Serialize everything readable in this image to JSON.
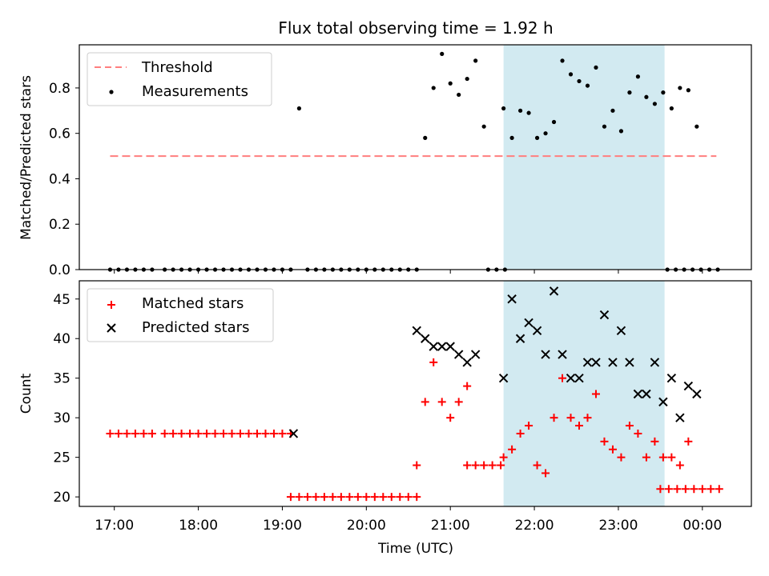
{
  "title": "Flux total observing time = 1.92 h",
  "chart_data": [
    {
      "type": "scatter",
      "title": "Flux total observing time = 1.92 h",
      "xlabel": "",
      "ylabel": "Matched/Predicted stars",
      "x_range": [
        "16:35",
        "00:35"
      ],
      "ylim": [
        0,
        0.99
      ],
      "yticks": [
        "0.0",
        "0.2",
        "0.4",
        "0.6",
        "0.8"
      ],
      "grid": false,
      "legend": "upper left",
      "observing_window": [
        "21:38",
        "23:33"
      ],
      "observing_window_color": "#add8e6",
      "threshold": {
        "name": "Threshold",
        "value": 0.5,
        "x_start": "16:57",
        "x_end": "00:10",
        "color": "#ff7f7f",
        "style": "dashed"
      },
      "series": [
        {
          "name": "Measurements",
          "color": "#000000",
          "marker": "dot",
          "points": [
            [
              "16:57",
              0
            ],
            [
              "17:03",
              0
            ],
            [
              "17:09",
              0
            ],
            [
              "17:15",
              0
            ],
            [
              "17:21",
              0
            ],
            [
              "17:27",
              0
            ],
            [
              "17:36",
              0
            ],
            [
              "17:42",
              0
            ],
            [
              "17:48",
              0
            ],
            [
              "17:54",
              0
            ],
            [
              "18:00",
              0
            ],
            [
              "18:06",
              0
            ],
            [
              "18:12",
              0
            ],
            [
              "18:18",
              0
            ],
            [
              "18:24",
              0
            ],
            [
              "18:30",
              0
            ],
            [
              "18:36",
              0
            ],
            [
              "18:42",
              0
            ],
            [
              "18:48",
              0
            ],
            [
              "18:54",
              0
            ],
            [
              "19:00",
              0
            ],
            [
              "19:06",
              0
            ],
            [
              "19:12",
              0.71
            ],
            [
              "19:18",
              0
            ],
            [
              "19:24",
              0
            ],
            [
              "19:30",
              0
            ],
            [
              "19:36",
              0
            ],
            [
              "19:42",
              0
            ],
            [
              "19:48",
              0
            ],
            [
              "19:54",
              0
            ],
            [
              "20:00",
              0
            ],
            [
              "20:06",
              0
            ],
            [
              "20:12",
              0
            ],
            [
              "20:18",
              0
            ],
            [
              "20:24",
              0
            ],
            [
              "20:30",
              0
            ],
            [
              "20:36",
              0
            ],
            [
              "20:42",
              0.58
            ],
            [
              "20:48",
              0.8
            ],
            [
              "20:54",
              0.95
            ],
            [
              "21:00",
              0.82
            ],
            [
              "21:06",
              0.77
            ],
            [
              "21:12",
              0.84
            ],
            [
              "21:18",
              0.92
            ],
            [
              "21:24",
              0.63
            ],
            [
              "21:27",
              0
            ],
            [
              "21:33",
              0
            ],
            [
              "21:39",
              0
            ],
            [
              "21:38",
              0.71
            ],
            [
              "21:44",
              0.58
            ],
            [
              "21:50",
              0.7
            ],
            [
              "21:56",
              0.69
            ],
            [
              "22:02",
              0.58
            ],
            [
              "22:08",
              0.6
            ],
            [
              "22:14",
              0.65
            ],
            [
              "22:20",
              0.92
            ],
            [
              "22:26",
              0.86
            ],
            [
              "22:32",
              0.83
            ],
            [
              "22:38",
              0.81
            ],
            [
              "22:44",
              0.89
            ],
            [
              "22:50",
              0.63
            ],
            [
              "22:56",
              0.7
            ],
            [
              "23:02",
              0.61
            ],
            [
              "23:08",
              0.78
            ],
            [
              "23:14",
              0.85
            ],
            [
              "23:20",
              0.76
            ],
            [
              "23:26",
              0.73
            ],
            [
              "23:32",
              0.78
            ],
            [
              "23:38",
              0.71
            ],
            [
              "23:44",
              0.8
            ],
            [
              "23:50",
              0.79
            ],
            [
              "23:56",
              0.63
            ],
            [
              "23:35",
              0
            ],
            [
              "23:41",
              0
            ],
            [
              "23:47",
              0
            ],
            [
              "23:53",
              0
            ],
            [
              "23:59",
              0
            ],
            [
              "00:05",
              0
            ],
            [
              "00:11",
              0
            ]
          ]
        }
      ]
    },
    {
      "type": "scatter",
      "title": "",
      "xlabel": "Time (UTC)",
      "ylabel": "Count",
      "x_range": [
        "16:35",
        "00:35"
      ],
      "xticks": [
        "17:00",
        "18:00",
        "19:00",
        "20:00",
        "21:00",
        "22:00",
        "23:00",
        "00:00"
      ],
      "ylim": [
        18.8,
        47.3
      ],
      "yticks": [
        "20",
        "25",
        "30",
        "35",
        "40",
        "45"
      ],
      "grid": false,
      "legend": "upper left",
      "observing_window": [
        "21:38",
        "23:33"
      ],
      "observing_window_color": "#add8e6",
      "series": [
        {
          "name": "Matched stars",
          "color": "#ff0000",
          "marker": "plus",
          "points": [
            [
              "16:57",
              28
            ],
            [
              "17:03",
              28
            ],
            [
              "17:09",
              28
            ],
            [
              "17:15",
              28
            ],
            [
              "17:21",
              28
            ],
            [
              "17:27",
              28
            ],
            [
              "17:36",
              28
            ],
            [
              "17:42",
              28
            ],
            [
              "17:48",
              28
            ],
            [
              "17:54",
              28
            ],
            [
              "18:00",
              28
            ],
            [
              "18:06",
              28
            ],
            [
              "18:12",
              28
            ],
            [
              "18:18",
              28
            ],
            [
              "18:24",
              28
            ],
            [
              "18:30",
              28
            ],
            [
              "18:36",
              28
            ],
            [
              "18:42",
              28
            ],
            [
              "18:48",
              28
            ],
            [
              "18:54",
              28
            ],
            [
              "19:00",
              28
            ],
            [
              "19:06",
              28
            ],
            [
              "19:06",
              20
            ],
            [
              "19:12",
              20
            ],
            [
              "19:18",
              20
            ],
            [
              "19:24",
              20
            ],
            [
              "19:30",
              20
            ],
            [
              "19:36",
              20
            ],
            [
              "19:42",
              20
            ],
            [
              "19:48",
              20
            ],
            [
              "19:54",
              20
            ],
            [
              "20:00",
              20
            ],
            [
              "20:06",
              20
            ],
            [
              "20:12",
              20
            ],
            [
              "20:18",
              20
            ],
            [
              "20:24",
              20
            ],
            [
              "20:30",
              20
            ],
            [
              "20:36",
              20
            ],
            [
              "20:36",
              24
            ],
            [
              "20:42",
              32
            ],
            [
              "20:48",
              37
            ],
            [
              "20:54",
              32
            ],
            [
              "21:00",
              30
            ],
            [
              "21:06",
              32
            ],
            [
              "21:12",
              34
            ],
            [
              "21:12",
              24
            ],
            [
              "21:18",
              24
            ],
            [
              "21:24",
              24
            ],
            [
              "21:30",
              24
            ],
            [
              "21:36",
              24
            ],
            [
              "21:38",
              25
            ],
            [
              "21:44",
              26
            ],
            [
              "21:50",
              28
            ],
            [
              "21:56",
              29
            ],
            [
              "22:02",
              24
            ],
            [
              "22:08",
              23
            ],
            [
              "22:14",
              30
            ],
            [
              "22:20",
              35
            ],
            [
              "22:26",
              30
            ],
            [
              "22:32",
              29
            ],
            [
              "22:38",
              30
            ],
            [
              "22:44",
              33
            ],
            [
              "22:50",
              27
            ],
            [
              "22:56",
              26
            ],
            [
              "23:02",
              25
            ],
            [
              "23:08",
              29
            ],
            [
              "23:14",
              28
            ],
            [
              "23:20",
              25
            ],
            [
              "23:26",
              27
            ],
            [
              "23:32",
              25
            ],
            [
              "23:38",
              25
            ],
            [
              "23:44",
              24
            ],
            [
              "23:50",
              27
            ],
            [
              "23:30",
              21
            ],
            [
              "23:36",
              21
            ],
            [
              "23:42",
              21
            ],
            [
              "23:48",
              21
            ],
            [
              "23:54",
              21
            ],
            [
              "00:00",
              21
            ],
            [
              "00:06",
              21
            ],
            [
              "00:12",
              21
            ]
          ]
        },
        {
          "name": "Predicted stars",
          "color": "#000000",
          "marker": "x",
          "points": [
            [
              "19:08",
              28
            ],
            [
              "20:36",
              41
            ],
            [
              "20:42",
              40
            ],
            [
              "20:48",
              39
            ],
            [
              "20:54",
              39
            ],
            [
              "21:00",
              39
            ],
            [
              "21:06",
              38
            ],
            [
              "21:12",
              37
            ],
            [
              "21:18",
              38
            ],
            [
              "21:38",
              35
            ],
            [
              "21:44",
              45
            ],
            [
              "21:50",
              40
            ],
            [
              "21:56",
              42
            ],
            [
              "22:02",
              41
            ],
            [
              "22:08",
              38
            ],
            [
              "22:14",
              46
            ],
            [
              "22:20",
              38
            ],
            [
              "22:26",
              35
            ],
            [
              "22:32",
              35
            ],
            [
              "22:38",
              37
            ],
            [
              "22:44",
              37
            ],
            [
              "22:50",
              43
            ],
            [
              "22:56",
              37
            ],
            [
              "23:02",
              41
            ],
            [
              "23:08",
              37
            ],
            [
              "23:14",
              33
            ],
            [
              "23:20",
              33
            ],
            [
              "23:26",
              37
            ],
            [
              "23:32",
              32
            ],
            [
              "23:38",
              35
            ],
            [
              "23:44",
              30
            ],
            [
              "23:50",
              34
            ],
            [
              "23:56",
              33
            ]
          ]
        }
      ]
    }
  ]
}
